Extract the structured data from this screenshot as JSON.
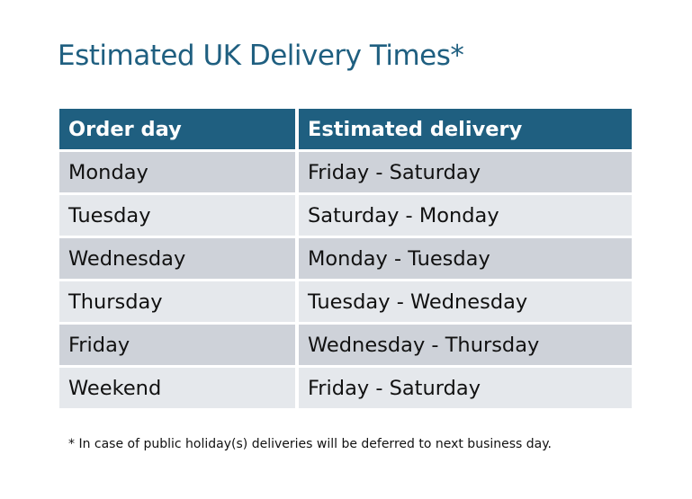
{
  "title": "Estimated UK Delivery Times*",
  "table": {
    "headers": [
      "Order day",
      "Estimated delivery"
    ],
    "rows": [
      [
        "Monday",
        "Friday - Saturday"
      ],
      [
        "Tuesday",
        "Saturday - Monday"
      ],
      [
        "Wednesday",
        "Monday - Tuesday"
      ],
      [
        "Thursday",
        "Tuesday - Wednesday"
      ],
      [
        "Friday",
        "Wednesday - Thursday"
      ],
      [
        "Weekend",
        "Friday - Saturday"
      ]
    ]
  },
  "footnote": "* In case of public holiday(s) deliveries will be deferred to next business day.",
  "colors": {
    "header": "#1f5f80",
    "row_dark": "#ced2d9",
    "row_light": "#e5e8ec"
  }
}
